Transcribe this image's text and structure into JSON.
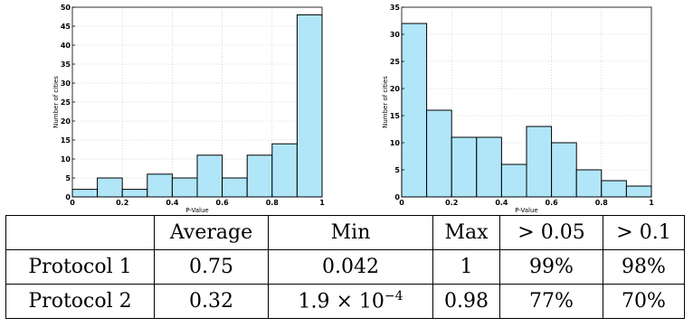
{
  "chart_data": [
    {
      "type": "bar",
      "title": "",
      "xlabel": "P-Value",
      "ylabel": "Number of cities",
      "bin_edges": [
        0,
        0.1,
        0.2,
        0.3,
        0.4,
        0.5,
        0.6,
        0.7,
        0.8,
        0.9,
        1.0
      ],
      "values": [
        2,
        5,
        2,
        6,
        5,
        11,
        5,
        11,
        14,
        48
      ],
      "xlim": [
        0,
        1
      ],
      "ylim": [
        0,
        50
      ],
      "xticks": [
        "0",
        "0.2",
        "0.4",
        "0.6",
        "0.8",
        "1"
      ],
      "yticks": [
        "0",
        "5",
        "10",
        "15",
        "20",
        "25",
        "30",
        "35",
        "40",
        "45",
        "50"
      ],
      "grid": true,
      "bar_color": "#b0e6f8"
    },
    {
      "type": "bar",
      "title": "",
      "xlabel": "P-Value",
      "ylabel": "Number of cities",
      "bin_edges": [
        0,
        0.1,
        0.2,
        0.3,
        0.4,
        0.5,
        0.6,
        0.7,
        0.8,
        0.9,
        1.0
      ],
      "values": [
        32,
        16,
        11,
        11,
        6,
        13,
        10,
        5,
        3,
        2
      ],
      "xlim": [
        0,
        1
      ],
      "ylim": [
        0,
        35
      ],
      "xticks": [
        "0",
        "0.2",
        "0.4",
        "0.6",
        "0.8",
        "1"
      ],
      "yticks": [
        "0",
        "5",
        "10",
        "15",
        "20",
        "25",
        "30",
        "35"
      ],
      "grid": true,
      "bar_color": "#b0e6f8"
    }
  ],
  "table": {
    "header": [
      "",
      "Average",
      "Min",
      "Max",
      "> 0.05",
      "> 0.1"
    ],
    "rows": [
      {
        "label": "Protocol 1",
        "average": "0.75",
        "min": "0.042",
        "max": "1",
        "gt005": "99%",
        "gt01": "98%"
      },
      {
        "label": "Protocol 2",
        "average": "0.32",
        "min_mantissa": "1.9 × 10",
        "min_exponent": "−4",
        "max": "0.98",
        "gt005": "77%",
        "gt01": "70%"
      }
    ]
  }
}
